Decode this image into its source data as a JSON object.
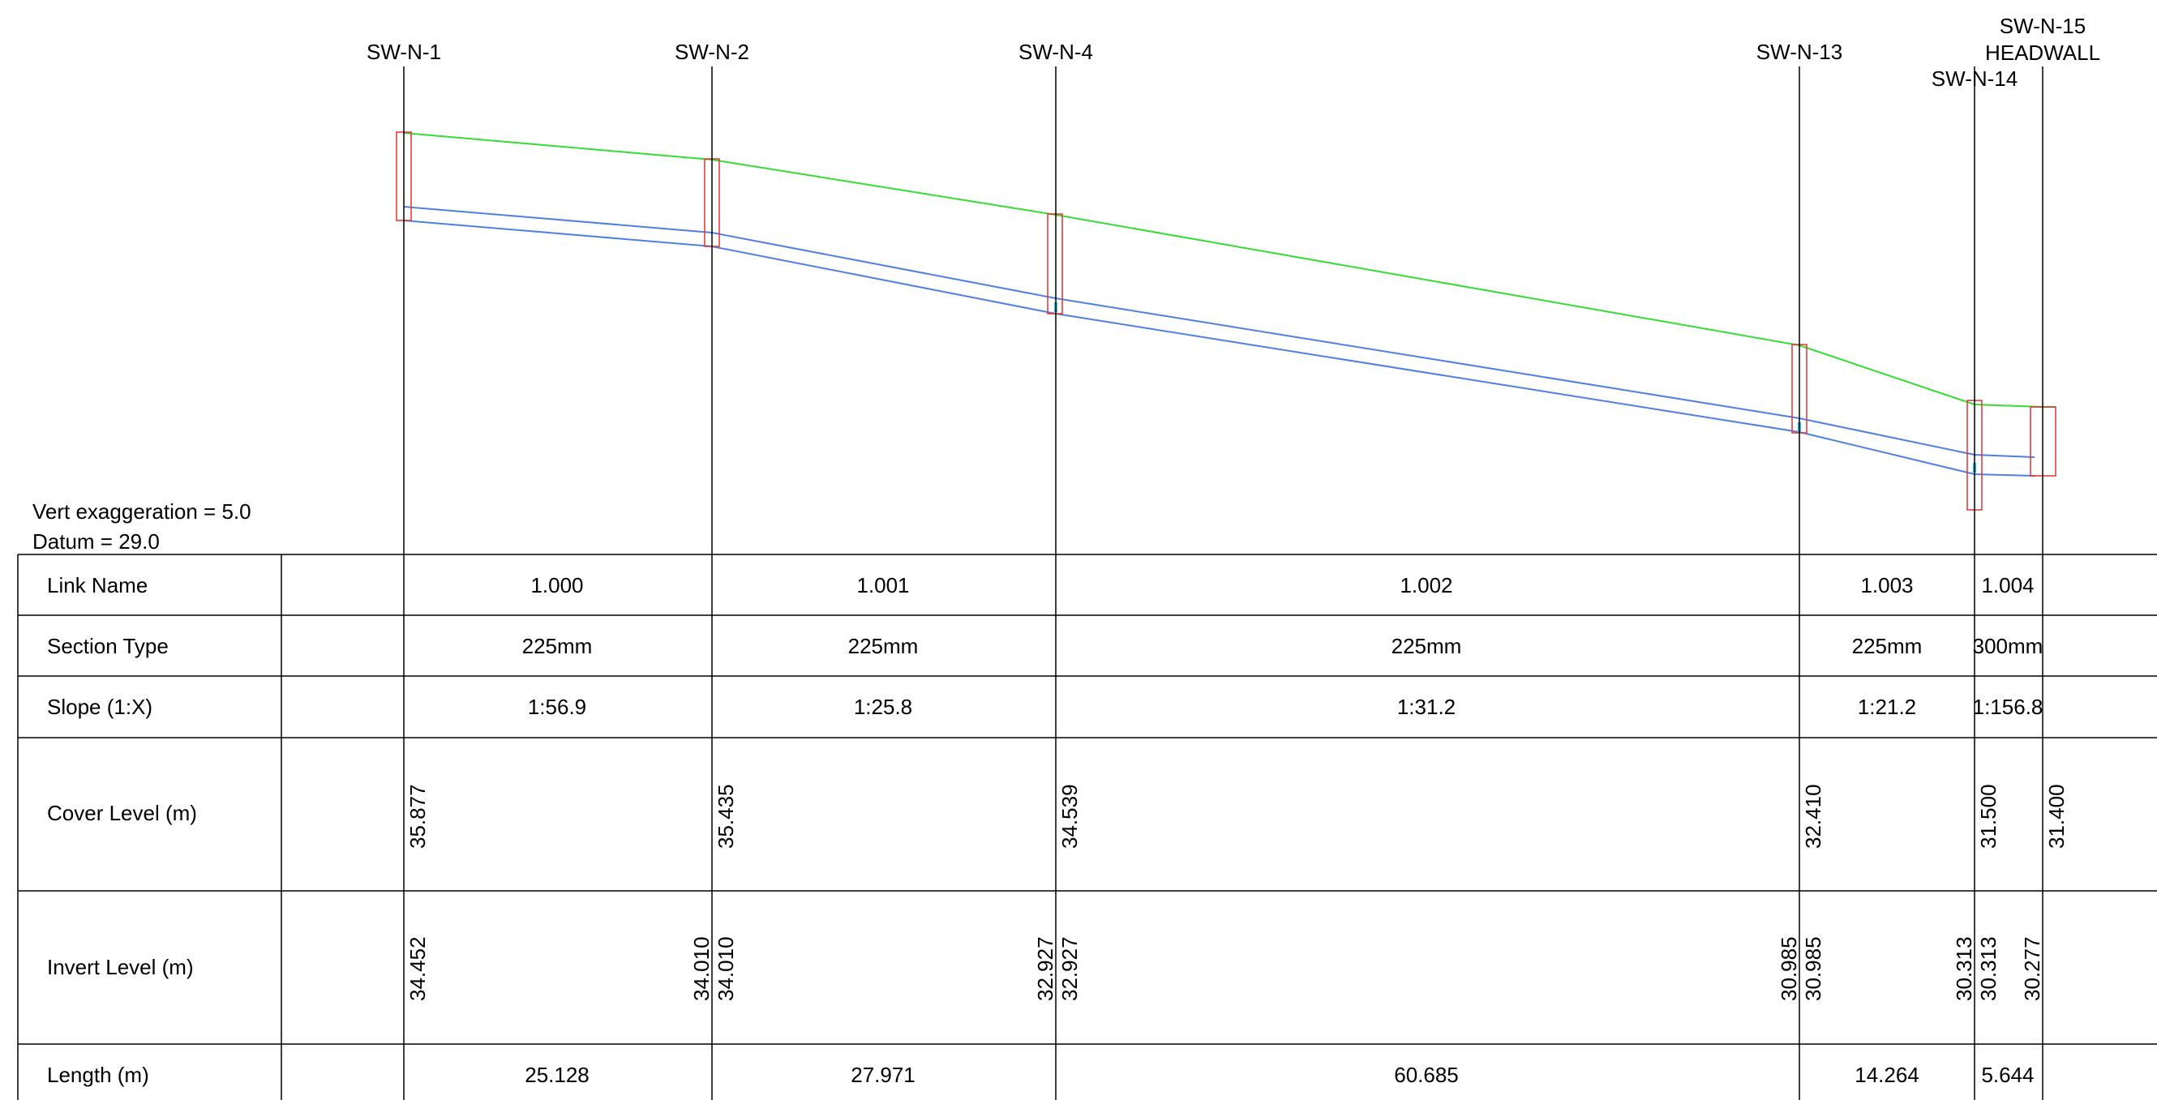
{
  "notes": {
    "vert_exaggeration": "Vert exaggeration = 5.0",
    "datum": "Datum = 29.0"
  },
  "manholes": [
    {
      "name": "SW-N-1"
    },
    {
      "name": "SW-N-2"
    },
    {
      "name": "SW-N-4"
    },
    {
      "name": "SW-N-13"
    },
    {
      "name": "SW-N-14"
    },
    {
      "name": "SW-N-15",
      "name2": "HEADWALL"
    }
  ],
  "table": {
    "row_labels": [
      "Link Name",
      "Section Type",
      "Slope (1:X)",
      "Cover Level (m)",
      "Invert Level (m)",
      "Length (m)"
    ],
    "links": [
      {
        "link_name": "1.000",
        "section_type": "225mm",
        "slope": "1:56.9",
        "length": "25.128"
      },
      {
        "link_name": "1.001",
        "section_type": "225mm",
        "slope": "1:25.8",
        "length": "27.971"
      },
      {
        "link_name": "1.002",
        "section_type": "225mm",
        "slope": "1:31.2",
        "length": "60.685"
      },
      {
        "link_name": "1.003",
        "section_type": "225mm",
        "slope": "1:21.2",
        "length": "14.264"
      },
      {
        "link_name": "1.004",
        "section_type": "300mm",
        "slope": "1:156.8",
        "length": "5.644"
      }
    ],
    "cover_levels": [
      "35.877",
      "35.435",
      "34.539",
      "32.410",
      "31.500",
      "31.400"
    ],
    "invert_levels": [
      {
        "in": "",
        "out": "34.452"
      },
      {
        "in": "34.010",
        "out": "34.010"
      },
      {
        "in": "32.927",
        "out": "32.927"
      },
      {
        "in": "30.985",
        "out": "30.985"
      },
      {
        "in": "30.313",
        "out": "30.313"
      },
      {
        "in": "30.277",
        "out": ""
      }
    ]
  },
  "colors": {
    "ground": "#33dd33",
    "pipe": "#4f7fe0",
    "manhole": "#e33333",
    "water": "#22ccee",
    "grid": "#000000"
  }
}
